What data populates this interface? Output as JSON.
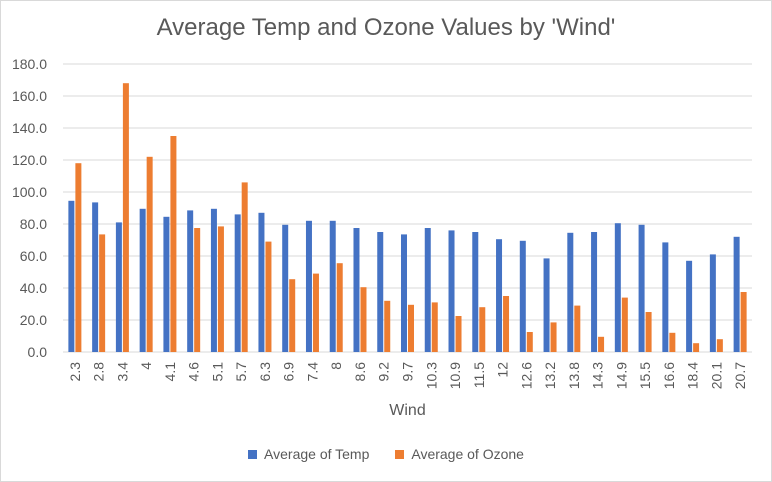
{
  "chart_data": {
    "type": "bar",
    "title": "Average Temp and Ozone Values by 'Wind'",
    "xlabel": "Wind",
    "ylabel": "",
    "ylim": [
      0,
      180
    ],
    "yticks": [
      "0.0",
      "20.0",
      "40.0",
      "60.0",
      "80.0",
      "100.0",
      "120.0",
      "140.0",
      "160.0",
      "180.0"
    ],
    "grid": true,
    "legend_position": "bottom",
    "categories": [
      "2.3",
      "2.8",
      "3.4",
      "4",
      "4.1",
      "4.6",
      "5.1",
      "5.7",
      "6.3",
      "6.9",
      "7.4",
      "8",
      "8.6",
      "9.2",
      "9.7",
      "10.3",
      "10.9",
      "11.5",
      "12",
      "12.6",
      "13.2",
      "13.8",
      "14.3",
      "14.9",
      "15.5",
      "16.6",
      "18.4",
      "20.1",
      "20.7"
    ],
    "series": [
      {
        "name": "Average of Temp",
        "color": "#4472c4",
        "values": [
          94.5,
          93.5,
          81,
          89.5,
          84.5,
          88.5,
          89.5,
          86,
          87,
          79.5,
          82,
          82,
          77.5,
          75,
          73.5,
          77.5,
          76,
          75,
          70.5,
          69.5,
          58.5,
          74.5,
          75,
          80.5,
          79.5,
          68.5,
          57,
          61,
          72
        ]
      },
      {
        "name": "Average of Ozone",
        "color": "#ed7d31",
        "values": [
          118,
          73.5,
          168,
          122,
          135,
          77.5,
          78.5,
          106,
          69,
          45.5,
          49,
          55.5,
          40.5,
          32,
          29.5,
          31,
          22.5,
          28,
          35,
          12.5,
          18.5,
          29,
          9.5,
          34,
          25,
          12,
          5.5,
          8,
          37.5
        ]
      }
    ]
  }
}
